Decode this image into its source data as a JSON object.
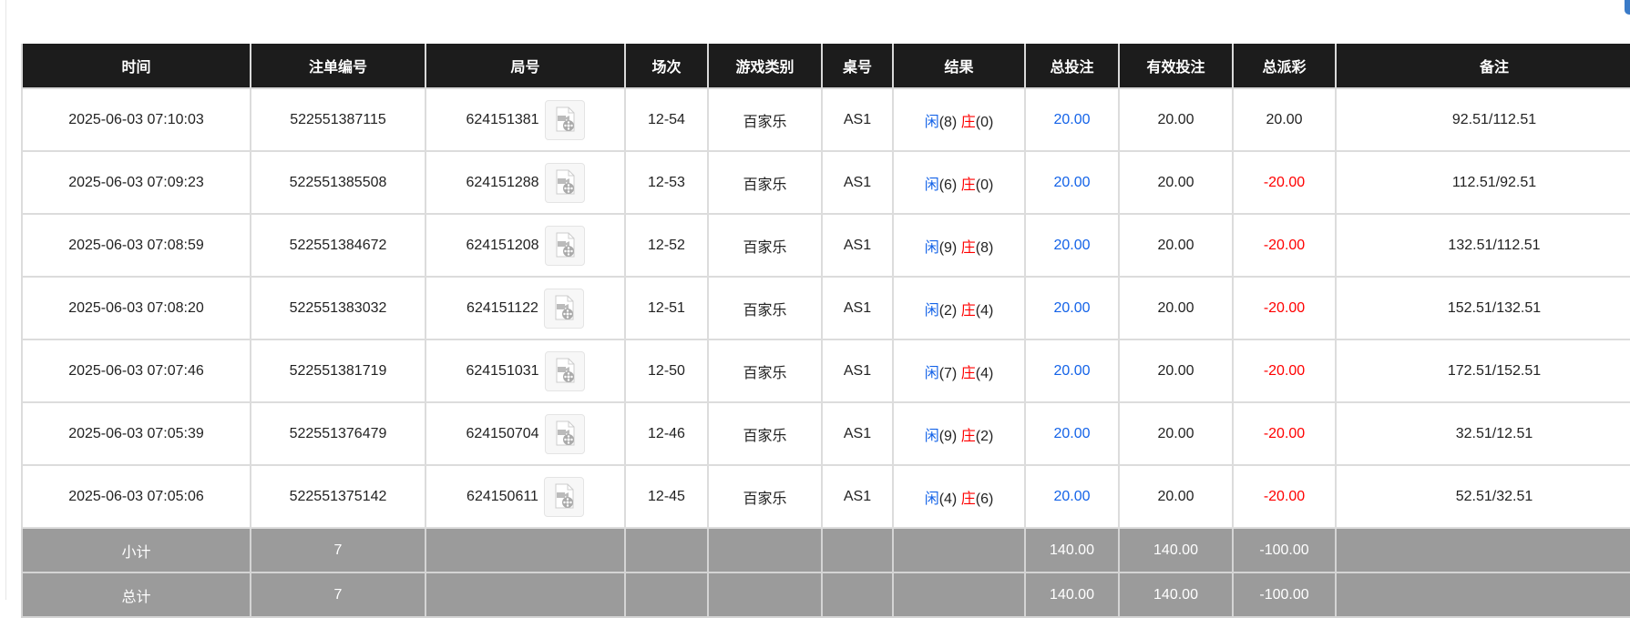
{
  "colors": {
    "header_bg": "#1c1c1c",
    "summary_bg": "#9b9b9b",
    "blue": "#1463e8",
    "red": "#ff0000"
  },
  "headers": [
    "时间",
    "注单编号",
    "局号",
    "场次",
    "游戏类别",
    "桌号",
    "结果",
    "总投注",
    "有效投注",
    "总派彩",
    "备注"
  ],
  "rows": [
    {
      "time": "2025-06-03 07:10:03",
      "bet_id": "522551387115",
      "round": "624151381",
      "session": "12-54",
      "game": "百家乐",
      "table": "AS1",
      "player_label": "闲",
      "player": "(8)",
      "banker_label": "庄",
      "banker": "(0)",
      "total_bet": "20.00",
      "valid_bet": "20.00",
      "payout": "20.00",
      "payout_negative": false,
      "note": "92.51/112.51",
      "icon": "video-file-icon"
    },
    {
      "time": "2025-06-03 07:09:23",
      "bet_id": "522551385508",
      "round": "624151288",
      "session": "12-53",
      "game": "百家乐",
      "table": "AS1",
      "player_label": "闲",
      "player": "(6)",
      "banker_label": "庄",
      "banker": "(0)",
      "total_bet": "20.00",
      "valid_bet": "20.00",
      "payout": "-20.00",
      "payout_negative": true,
      "note": "112.51/92.51",
      "icon": "video-file-icon"
    },
    {
      "time": "2025-06-03 07:08:59",
      "bet_id": "522551384672",
      "round": "624151208",
      "session": "12-52",
      "game": "百家乐",
      "table": "AS1",
      "player_label": "闲",
      "player": "(9)",
      "banker_label": "庄",
      "banker": "(8)",
      "total_bet": "20.00",
      "valid_bet": "20.00",
      "payout": "-20.00",
      "payout_negative": true,
      "note": "132.51/112.51",
      "icon": "video-file-icon"
    },
    {
      "time": "2025-06-03 07:08:20",
      "bet_id": "522551383032",
      "round": "624151122",
      "session": "12-51",
      "game": "百家乐",
      "table": "AS1",
      "player_label": "闲",
      "player": "(2)",
      "banker_label": "庄",
      "banker": "(4)",
      "total_bet": "20.00",
      "valid_bet": "20.00",
      "payout": "-20.00",
      "payout_negative": true,
      "note": "152.51/132.51",
      "icon": "video-file-icon"
    },
    {
      "time": "2025-06-03 07:07:46",
      "bet_id": "522551381719",
      "round": "624151031",
      "session": "12-50",
      "game": "百家乐",
      "table": "AS1",
      "player_label": "闲",
      "player": "(7)",
      "banker_label": "庄",
      "banker": "(4)",
      "total_bet": "20.00",
      "valid_bet": "20.00",
      "payout": "-20.00",
      "payout_negative": true,
      "note": "172.51/152.51",
      "icon": "video-file-icon"
    },
    {
      "time": "2025-06-03 07:05:39",
      "bet_id": "522551376479",
      "round": "624150704",
      "session": "12-46",
      "game": "百家乐",
      "table": "AS1",
      "player_label": "闲",
      "player": "(9)",
      "banker_label": "庄",
      "banker": "(2)",
      "total_bet": "20.00",
      "valid_bet": "20.00",
      "payout": "-20.00",
      "payout_negative": true,
      "note": "32.51/12.51",
      "icon": "video-file-icon"
    },
    {
      "time": "2025-06-03 07:05:06",
      "bet_id": "522551375142",
      "round": "624150611",
      "session": "12-45",
      "game": "百家乐",
      "table": "AS1",
      "player_label": "闲",
      "player": "(4)",
      "banker_label": "庄",
      "banker": "(6)",
      "total_bet": "20.00",
      "valid_bet": "20.00",
      "payout": "-20.00",
      "payout_negative": true,
      "note": "52.51/32.51",
      "icon": "video-file-icon"
    }
  ],
  "summary": [
    {
      "label": "小计",
      "count": "7",
      "total_bet": "140.00",
      "valid_bet": "140.00",
      "payout": "-100.00"
    },
    {
      "label": "总计",
      "count": "7",
      "total_bet": "140.00",
      "valid_bet": "140.00",
      "payout": "-100.00"
    }
  ]
}
